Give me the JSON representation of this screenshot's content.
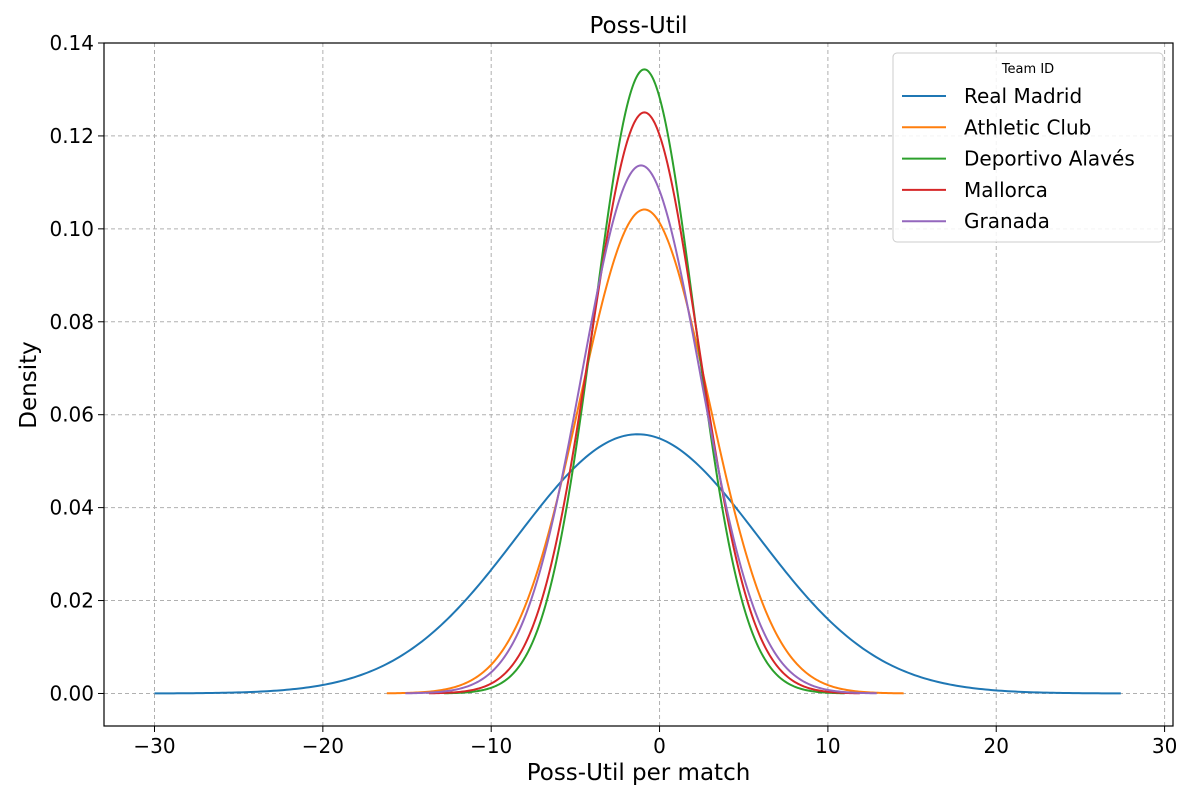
{
  "chart_data": {
    "type": "line",
    "title": "Poss-Util",
    "xlabel": "Poss-Util per match",
    "ylabel": "Density",
    "xlim": [
      -33,
      30.5
    ],
    "ylim": [
      -0.007,
      0.14
    ],
    "xticks": [
      -30,
      -20,
      -10,
      0,
      10,
      20,
      30
    ],
    "xtick_labels": [
      "−30",
      "−20",
      "−10",
      "0",
      "10",
      "20",
      "30"
    ],
    "yticks": [
      0.0,
      0.02,
      0.04,
      0.06,
      0.08,
      0.1,
      0.12,
      0.14
    ],
    "ytick_labels": [
      "0.00",
      "0.02",
      "0.04",
      "0.06",
      "0.08",
      "0.10",
      "0.12",
      "0.14"
    ],
    "grid": true,
    "legend": {
      "title": "Team ID",
      "position": "top-right"
    },
    "series": [
      {
        "name": "Real Madrid",
        "color": "#1f77b4",
        "distribution": "normal",
        "mean": -1.3,
        "sd": 7.15,
        "x_range": [
          -30,
          27.4
        ]
      },
      {
        "name": "Athletic Club",
        "color": "#ff7f0e",
        "distribution": "normal",
        "mean": -0.9,
        "sd": 3.83,
        "x_range": [
          -16.2,
          14.5
        ]
      },
      {
        "name": "Deportivo Alavés",
        "color": "#2ca02c",
        "distribution": "normal",
        "mean": -0.9,
        "sd": 2.97,
        "x_range": [
          -12.8,
          11.0
        ]
      },
      {
        "name": "Mallorca",
        "color": "#d62728",
        "distribution": "normal",
        "mean": -0.9,
        "sd": 3.19,
        "x_range": [
          -13.7,
          11.9
        ]
      },
      {
        "name": "Granada",
        "color": "#9467bd",
        "distribution": "normal",
        "mean": -1.1,
        "sd": 3.51,
        "x_range": [
          -15.1,
          12.9
        ]
      }
    ]
  }
}
